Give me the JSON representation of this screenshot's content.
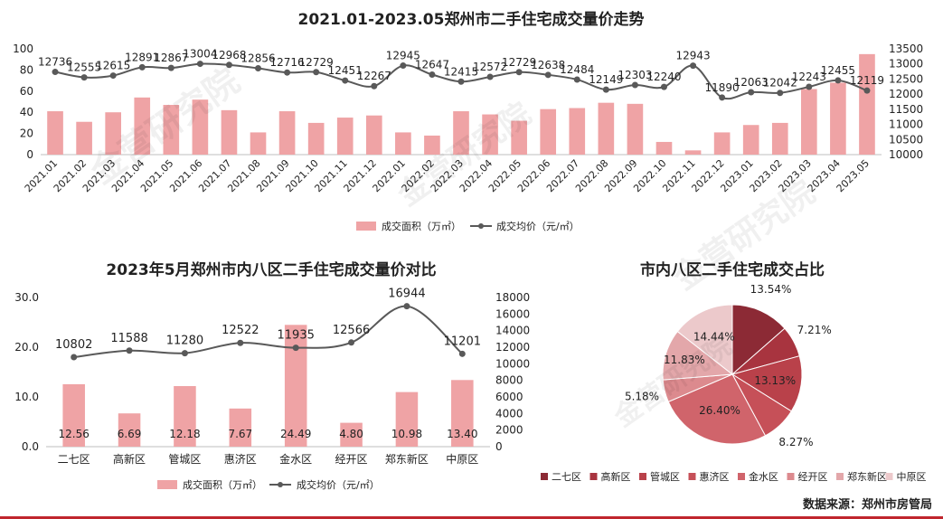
{
  "source_label": "数据来源：郑州市房管局",
  "watermark": "金营研究院",
  "colors": {
    "bar": "#efa3a5",
    "line": "#595959",
    "text": "#222222",
    "axis": "#bfbfbf",
    "accent": "#c0262d",
    "pie": [
      "#8c2a35",
      "#a8343f",
      "#b9414a",
      "#c65058",
      "#d0646b",
      "#dc8a8e",
      "#e3a7aa",
      "#ecc9cb"
    ]
  },
  "chart_data": [
    {
      "type": "bar",
      "id": "trend",
      "title": "2021.01-2023.05郑州市二手住宅成交量价走势",
      "categories": [
        "2021.01",
        "2021.02",
        "2021.03",
        "2021.04",
        "2021.05",
        "2021.06",
        "2021.07",
        "2021.08",
        "2021.09",
        "2021.10",
        "2021.11",
        "2021.12",
        "2022.01",
        "2022.02",
        "2022.03",
        "2022.04",
        "2022.05",
        "2022.06",
        "2022.07",
        "2022.08",
        "2022.09",
        "2022.10",
        "2022.11",
        "2022.12",
        "2023.01",
        "2023.02",
        "2023.03",
        "2023.04",
        "2023.05"
      ],
      "series": [
        {
          "name": "成交面积（万㎡）",
          "kind": "bar",
          "axis": "left",
          "values": [
            41,
            31,
            40,
            54,
            47,
            52,
            42,
            21,
            41,
            30,
            35,
            37,
            21,
            18,
            41,
            38,
            32,
            43,
            44,
            49,
            48,
            12,
            4,
            21,
            28,
            30,
            62,
            68,
            95
          ]
        },
        {
          "name": "成交均价（元/㎡）",
          "kind": "line",
          "axis": "right",
          "values": [
            12736,
            12555,
            12615,
            12891,
            12867,
            13004,
            12968,
            12856,
            12716,
            12729,
            12451,
            12267,
            12945,
            12647,
            12415,
            12572,
            12729,
            12638,
            12484,
            12149,
            12303,
            12240,
            12943,
            11890,
            12063,
            12042,
            12243,
            12455,
            12119
          ],
          "labels": [
            "12736",
            "12555",
            "12615",
            "12891",
            "12867",
            "13004",
            "12968",
            "12856",
            "12716",
            "12729",
            "12451",
            "12267",
            "12945",
            "12647",
            "12415",
            "12572",
            "12729",
            "12638",
            "12484",
            "12149",
            "12303",
            "12240",
            "12943",
            "11890",
            "12063",
            "12042",
            "12243",
            "12455",
            "12119"
          ]
        }
      ],
      "left_axis": {
        "min": 0,
        "max": 100,
        "ticks": [
          "0",
          "20",
          "40",
          "60",
          "80",
          "100"
        ]
      },
      "right_axis": {
        "min": 10000,
        "max": 13500,
        "ticks": [
          "10000",
          "10500",
          "11000",
          "11500",
          "12000",
          "12500",
          "13000",
          "13500"
        ]
      },
      "legend": "bottom"
    },
    {
      "type": "bar",
      "id": "districts",
      "title": "2023年5月郑州市内八区二手住宅成交量价对比",
      "categories": [
        "二七区",
        "高新区",
        "管城区",
        "惠济区",
        "金水区",
        "经开区",
        "郑东新区",
        "中原区"
      ],
      "series": [
        {
          "name": "成交面积（万㎡）",
          "kind": "bar",
          "axis": "left",
          "values": [
            12.56,
            6.69,
            12.18,
            7.67,
            24.49,
            4.8,
            10.98,
            13.4
          ],
          "labels": [
            "12.56",
            "6.69",
            "12.18",
            "7.67",
            "24.49",
            "4.80",
            "10.98",
            "13.40"
          ]
        },
        {
          "name": "成交均价（元/㎡）",
          "kind": "line",
          "axis": "right",
          "values": [
            10802,
            11588,
            11280,
            12522,
            11935,
            12566,
            16944,
            11201
          ],
          "labels": [
            "10802",
            "11588",
            "11280",
            "12522",
            "11935",
            "12566",
            "16944",
            "11201"
          ]
        }
      ],
      "left_axis": {
        "min": 0,
        "max": 30,
        "ticks": [
          "0.0",
          "10.0",
          "20.0",
          "30.0"
        ]
      },
      "right_axis": {
        "min": 0,
        "max": 18000,
        "ticks": [
          "0",
          "2000",
          "4000",
          "6000",
          "8000",
          "10000",
          "12000",
          "14000",
          "16000",
          "18000"
        ]
      },
      "legend": "bottom"
    },
    {
      "type": "pie",
      "id": "share",
      "title": "市内八区二手住宅成交占比",
      "categories": [
        "二七区",
        "高新区",
        "管城区",
        "惠济区",
        "金水区",
        "经开区",
        "郑东新区",
        "中原区"
      ],
      "values": [
        13.54,
        7.21,
        13.13,
        8.27,
        26.4,
        5.18,
        11.83,
        14.44
      ],
      "labels": [
        "13.54%",
        "7.21%",
        "13.13%",
        "8.27%",
        "26.40%",
        "5.18%",
        "11.83%",
        "14.44%"
      ],
      "legend": "bottom"
    }
  ]
}
